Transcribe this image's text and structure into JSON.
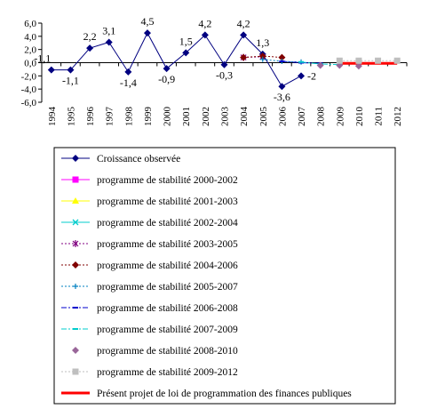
{
  "chart_data": {
    "type": "line",
    "title": "",
    "xlabel": "",
    "ylabel": "",
    "ylim": [
      -6.0,
      6.0
    ],
    "yticks": [
      "6,0",
      "4,0",
      "2,0",
      "0,0",
      "-2,0",
      "-4,0",
      "-6,0"
    ],
    "ytick_values": [
      6,
      4,
      2,
      0,
      -2,
      -4,
      -6
    ],
    "categories": [
      "1994",
      "1995",
      "1996",
      "1997",
      "1998",
      "1999",
      "2000",
      "2001",
      "2002",
      "2003",
      "2004",
      "2005",
      "2006",
      "2007",
      "2008",
      "2009",
      "2010",
      "2011",
      "2012"
    ],
    "grid": false,
    "legend_position": "bottom",
    "series": [
      {
        "name": "Croissance observée",
        "color": "#000080",
        "style": "solid",
        "marker": "diamond",
        "x": [
          "1994",
          "1995",
          "1996",
          "1997",
          "1998",
          "1999",
          "2000",
          "2001",
          "2002",
          "2003",
          "2004",
          "2005",
          "2006",
          "2007"
        ],
        "values": [
          -1.1,
          -1.1,
          2.2,
          3.1,
          -1.4,
          4.5,
          -0.9,
          1.5,
          4.2,
          -0.3,
          4.2,
          1.3,
          -3.6,
          -2.0
        ]
      },
      {
        "name": "programme de stabilité 2000-2002",
        "color": "#FF00FF",
        "style": "solid",
        "marker": "square",
        "x": [],
        "values": []
      },
      {
        "name": "programme de stabilité 2001-2003",
        "color": "#FFFF00",
        "style": "solid",
        "marker": "triangle",
        "x": [],
        "values": []
      },
      {
        "name": "programme de stabilité 2002-2004",
        "color": "#00CCCC",
        "style": "solid",
        "marker": "x",
        "x": [],
        "values": []
      },
      {
        "name": "programme de stabilité 2003-2005",
        "color": "#800080",
        "style": "dotted",
        "marker": "star",
        "x": [
          "2004",
          "2005"
        ],
        "values": [
          0.8,
          0.9
        ]
      },
      {
        "name": "programme de stabilité 2004-2006",
        "color": "#800000",
        "style": "dotted",
        "marker": "diamond",
        "x": [
          "2004",
          "2005",
          "2006"
        ],
        "values": [
          0.8,
          1.0,
          0.8
        ]
      },
      {
        "name": "programme de stabilité 2005-2007",
        "color": "#0080C0",
        "style": "dotted",
        "marker": "plus",
        "x": [
          "2005",
          "2006",
          "2007"
        ],
        "values": [
          0.5,
          0.2,
          0.1
        ]
      },
      {
        "name": "programme de stabilité 2006-2008",
        "color": "#0000CC",
        "style": "dashdot",
        "marker": "dash",
        "x": [
          "2006",
          "2007",
          "2008"
        ],
        "values": [
          0.2,
          0.0,
          -0.1
        ]
      },
      {
        "name": "programme de stabilité 2007-2009",
        "color": "#00CCCC",
        "style": "dashdot",
        "marker": "dash",
        "x": [
          "2007",
          "2008",
          "2009"
        ],
        "values": [
          0.1,
          -0.2,
          -0.3
        ]
      },
      {
        "name": "programme de stabilité 2008-2010",
        "color": "#996699",
        "style": "none",
        "marker": "diamond",
        "x": [
          "2008",
          "2009",
          "2010"
        ],
        "values": [
          -0.4,
          -0.4,
          -0.5
        ]
      },
      {
        "name": "programme de stabilité 2009-2012",
        "color": "#BFBFBF",
        "style": "dotted",
        "marker": "square",
        "x": [
          "2009",
          "2010",
          "2011",
          "2012"
        ],
        "values": [
          0.3,
          0.3,
          0.3,
          0.3
        ]
      },
      {
        "name": "Présent projet de loi de programmation des finances publiques",
        "color": "#FF0000",
        "style": "thick",
        "marker": "none",
        "x": [
          "2009",
          "2010",
          "2011",
          "2012"
        ],
        "values": [
          -0.1,
          -0.1,
          -0.1,
          -0.1
        ]
      }
    ]
  }
}
